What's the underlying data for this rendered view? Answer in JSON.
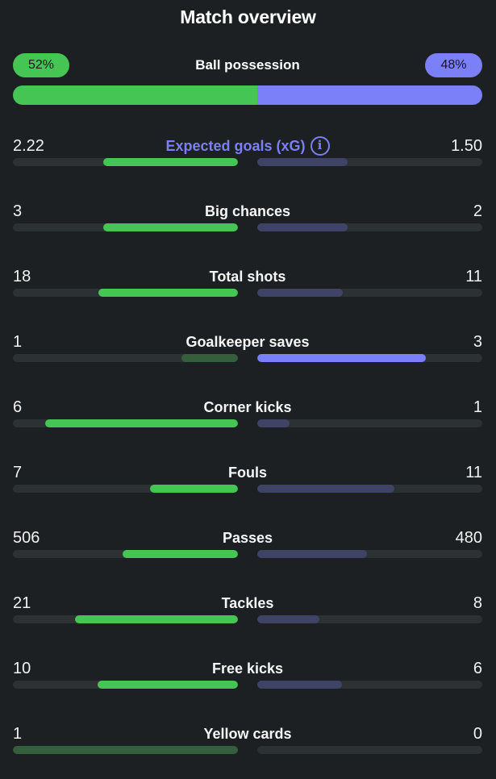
{
  "title": "Match overview",
  "possession": {
    "label": "Ball possession",
    "home": "52%",
    "away": "48%",
    "home_share": 0.52
  },
  "colors": {
    "home": "#44c554",
    "home_dim": "#355e3d",
    "away": "#7b7ff8",
    "away_dim": "#3f4466"
  },
  "stats": [
    {
      "label": "Expected goals (xG)",
      "home": "2.22",
      "away": "1.50",
      "accent": true,
      "info": "i",
      "home_share": 0.597,
      "away_share": 0.403,
      "home_style": "bright",
      "away_style": "dim"
    },
    {
      "label": "Big chances",
      "home": "3",
      "away": "2",
      "home_share": 0.6,
      "away_share": 0.4,
      "home_style": "bright",
      "away_style": "dim"
    },
    {
      "label": "Total shots",
      "home": "18",
      "away": "11",
      "home_share": 0.62,
      "away_share": 0.38,
      "home_style": "bright",
      "away_style": "dim"
    },
    {
      "label": "Goalkeeper saves",
      "home": "1",
      "away": "3",
      "home_share": 0.25,
      "away_share": 0.75,
      "home_style": "dim",
      "away_style": "bright"
    },
    {
      "label": "Corner kicks",
      "home": "6",
      "away": "1",
      "home_share": 0.857,
      "away_share": 0.143,
      "home_style": "bright",
      "away_style": "dim"
    },
    {
      "label": "Fouls",
      "home": "7",
      "away": "11",
      "home_share": 0.39,
      "away_share": 0.61,
      "home_style": "bright",
      "away_style": "dim"
    },
    {
      "label": "Passes",
      "home": "506",
      "away": "480",
      "home_share": 0.513,
      "away_share": 0.487,
      "home_style": "bright",
      "away_style": "dim"
    },
    {
      "label": "Tackles",
      "home": "21",
      "away": "8",
      "home_share": 0.724,
      "away_share": 0.276,
      "home_style": "bright",
      "away_style": "dim"
    },
    {
      "label": "Free kicks",
      "home": "10",
      "away": "6",
      "home_share": 0.625,
      "away_share": 0.375,
      "home_style": "bright",
      "away_style": "dim"
    },
    {
      "label": "Yellow cards",
      "home": "1",
      "away": "0",
      "home_share": 1.0,
      "away_share": 0.0,
      "home_style": "dim",
      "away_style": "dim"
    }
  ]
}
